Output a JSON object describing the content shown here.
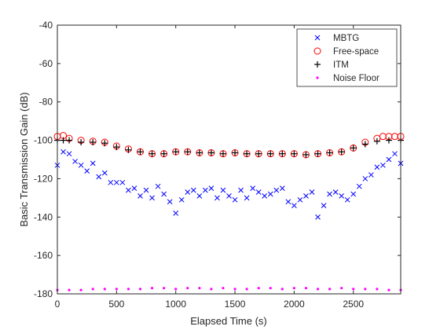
{
  "chart_data": {
    "type": "scatter",
    "xlabel": "Elapsed Time (s)",
    "ylabel": "Basic Transmission Gain (dB)",
    "xlim": [
      0,
      2900
    ],
    "ylim": [
      -180,
      -40
    ],
    "xticks": [
      0,
      500,
      1000,
      1500,
      2000,
      2500
    ],
    "yticks": [
      -40,
      -60,
      -80,
      -100,
      -120,
      -140,
      -160,
      -180
    ],
    "xtick_labels": [
      "0",
      "500",
      "1000",
      "1500",
      "2000",
      "2500"
    ],
    "ytick_labels": [
      "-40",
      "-60",
      "-80",
      "-100",
      "-120",
      "-140",
      "-160",
      "-180"
    ],
    "grid": false,
    "legend_position": "top-right",
    "series": [
      {
        "name": "MBTG",
        "marker": "x",
        "color": "#0000ff",
        "x": [
          0,
          50,
          100,
          150,
          200,
          250,
          300,
          350,
          400,
          450,
          500,
          550,
          600,
          650,
          700,
          750,
          800,
          850,
          900,
          950,
          1000,
          1050,
          1100,
          1150,
          1200,
          1250,
          1300,
          1350,
          1400,
          1450,
          1500,
          1550,
          1600,
          1650,
          1700,
          1750,
          1800,
          1850,
          1900,
          1950,
          2000,
          2050,
          2100,
          2150,
          2200,
          2250,
          2300,
          2350,
          2400,
          2450,
          2500,
          2550,
          2600,
          2650,
          2700,
          2750,
          2800,
          2850,
          2900
        ],
        "y": [
          -113,
          -106,
          -107,
          -111,
          -113,
          -116,
          -112,
          -119,
          -117,
          -122,
          -122,
          -122,
          -126,
          -125,
          -129,
          -126,
          -130,
          -124,
          -128,
          -132,
          -138,
          -131,
          -127,
          -126,
          -129,
          -126,
          -125,
          -130,
          -126,
          -129,
          -131,
          -126,
          -130,
          -125,
          -127,
          -129,
          -128,
          -126,
          -125,
          -132,
          -134,
          -131,
          -129,
          -127,
          -140,
          -134,
          -128,
          -127,
          -129,
          -131,
          -128,
          -124,
          -120,
          -118,
          -114,
          -113,
          -110,
          -107,
          -112
        ]
      },
      {
        "name": "Free-space",
        "marker": "o",
        "color": "#ff0000",
        "x": [
          0,
          50,
          100,
          200,
          300,
          400,
          500,
          600,
          700,
          800,
          900,
          1000,
          1100,
          1200,
          1300,
          1400,
          1500,
          1600,
          1700,
          1800,
          1900,
          2000,
          2100,
          2200,
          2300,
          2400,
          2500,
          2600,
          2700,
          2750,
          2800,
          2850,
          2900
        ],
        "y": [
          -98,
          -97.5,
          -99,
          -100,
          -100.5,
          -101,
          -103,
          -104.5,
          -106,
          -107,
          -107,
          -106,
          -106,
          -106.5,
          -106.5,
          -107,
          -106.5,
          -107,
          -107,
          -107,
          -107,
          -107,
          -107.5,
          -107,
          -106.5,
          -106,
          -104,
          -101,
          -99,
          -98,
          -98,
          -98,
          -98
        ]
      },
      {
        "name": "ITM",
        "marker": "+",
        "color": "#000000",
        "x": [
          0,
          50,
          100,
          200,
          300,
          400,
          500,
          600,
          700,
          800,
          900,
          1000,
          1100,
          1200,
          1300,
          1400,
          1500,
          1600,
          1700,
          1800,
          1900,
          2000,
          2100,
          2200,
          2300,
          2400,
          2500,
          2600,
          2700,
          2800,
          2900
        ],
        "y": [
          -100,
          -100,
          -100,
          -101,
          -101,
          -101.5,
          -103.5,
          -105,
          -106,
          -107,
          -107,
          -106,
          -106,
          -106.5,
          -106.5,
          -107,
          -106.5,
          -107,
          -107,
          -107,
          -107,
          -107,
          -107.5,
          -107,
          -106.5,
          -106,
          -104,
          -102,
          -100.5,
          -100,
          -100
        ]
      },
      {
        "name": "Noise Floor",
        "marker": ".",
        "color": "#ff00ff",
        "x": [
          0,
          100,
          200,
          300,
          400,
          500,
          600,
          700,
          800,
          900,
          1000,
          1100,
          1200,
          1300,
          1400,
          1500,
          1600,
          1700,
          1800,
          1900,
          2000,
          2100,
          2200,
          2300,
          2400,
          2500,
          2600,
          2700,
          2800,
          2900
        ],
        "y": [
          -178,
          -178,
          -178,
          -177.5,
          -177.5,
          -177.5,
          -177.5,
          -177.5,
          -177,
          -177,
          -177.5,
          -177,
          -177,
          -177.5,
          -177,
          -177.5,
          -177.5,
          -177,
          -177,
          -177.5,
          -177,
          -177,
          -177.5,
          -177.5,
          -177,
          -177.5,
          -177.5,
          -177.5,
          -178,
          -178
        ]
      }
    ]
  }
}
